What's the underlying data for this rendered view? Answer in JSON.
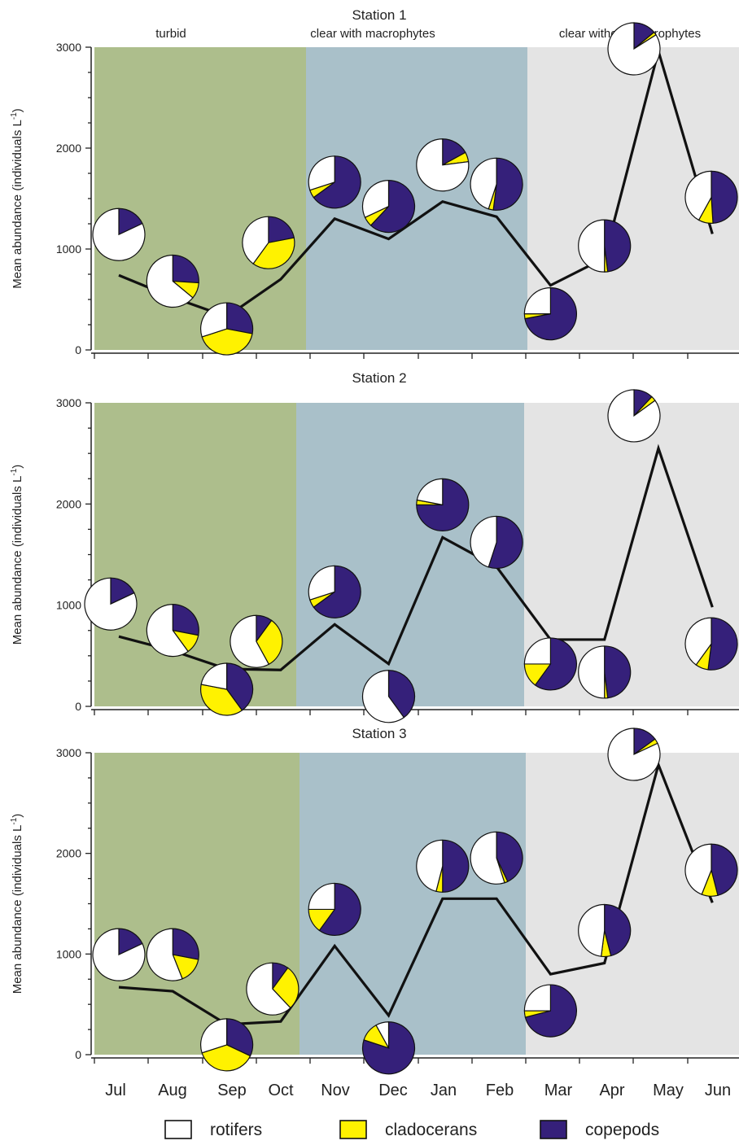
{
  "colors": {
    "turbid": "#adbe8c",
    "clear_with": "#a9c0c9",
    "clear_without": "#e4e4e4",
    "rotifers": "#ffffff",
    "cladocerans": "#fff200",
    "copepods": "#35207a",
    "line": "#111111"
  },
  "chart_data": [
    {
      "type": "line",
      "title": "Station 1",
      "period_labels": [
        "turbid",
        "clear with macrophytes",
        "clear without macrophytes"
      ],
      "categories": [
        "Jul",
        "Aug",
        "Sep",
        "Oct",
        "Nov",
        "Dec",
        "Jan",
        "Feb",
        "Mar",
        "Apr",
        "May",
        "Jun"
      ],
      "ylabel": "Mean abundance (individuals L",
      "ylabel_sup": "-1",
      "ylabel_end": ")",
      "ylim": [
        0,
        3000
      ],
      "yticks": [
        "0",
        "1000",
        "2000",
        "3000"
      ],
      "periods": [
        {
          "label": "turbid",
          "from": 0,
          "to": 4
        },
        {
          "label": "clear with macrophytes",
          "from": 4,
          "to": 8
        },
        {
          "label": "clear without macrophytes",
          "from": 8,
          "to": 12
        }
      ],
      "series": [
        {
          "values": [
            740,
            520,
            330,
            700,
            1300,
            1100,
            1470,
            1320,
            640,
            910,
            2960,
            1150
          ]
        }
      ],
      "pies": [
        {
          "month": "Jul",
          "rotifers": 82,
          "cladocerans": 0,
          "copepods": 18
        },
        {
          "month": "Aug",
          "rotifers": 64,
          "cladocerans": 10,
          "copepods": 26
        },
        {
          "month": "Sep",
          "rotifers": 30,
          "cladocerans": 42,
          "copepods": 28
        },
        {
          "month": "Oct",
          "rotifers": 40,
          "cladocerans": 38,
          "copepods": 22
        },
        {
          "month": "Nov",
          "rotifers": 30,
          "cladocerans": 5,
          "copepods": 65
        },
        {
          "month": "Dec",
          "rotifers": 32,
          "cladocerans": 6,
          "copepods": 62
        },
        {
          "month": "Jan",
          "rotifers": 77,
          "cladocerans": 6,
          "copepods": 17
        },
        {
          "month": "Feb",
          "rotifers": 45,
          "cladocerans": 3,
          "copepods": 52
        },
        {
          "month": "Mar",
          "rotifers": 25,
          "cladocerans": 3,
          "copepods": 72
        },
        {
          "month": "Apr",
          "rotifers": 50,
          "cladocerans": 2,
          "copepods": 48
        },
        {
          "month": "May",
          "rotifers": 84,
          "cladocerans": 2,
          "copepods": 14
        },
        {
          "month": "Jun",
          "rotifers": 42,
          "cladocerans": 9,
          "copepods": 49
        }
      ]
    },
    {
      "type": "line",
      "title": "Station 2",
      "categories": [
        "Jul",
        "Aug",
        "Sep",
        "Oct",
        "Nov",
        "Dec",
        "Jan",
        "Feb",
        "Mar",
        "Apr",
        "May",
        "Jun"
      ],
      "ylabel": "Mean abundance (individuals L",
      "ylabel_sup": "-1",
      "ylabel_end": ")",
      "ylim": [
        0,
        3000
      ],
      "yticks": [
        "0",
        "1000",
        "2000",
        "3000"
      ],
      "periods": [
        {
          "label": "turbid",
          "from": 0,
          "to": 4
        },
        {
          "label": "clear with macrophytes",
          "from": 4,
          "to": 8
        },
        {
          "label": "clear without macrophytes",
          "from": 8,
          "to": 12
        }
      ],
      "series": [
        {
          "values": [
            690,
            550,
            370,
            360,
            810,
            420,
            1670,
            1380,
            660,
            660,
            2550,
            980
          ]
        }
      ],
      "pies": [
        {
          "month": "Jul",
          "rotifers": 82,
          "cladocerans": 0,
          "copepods": 18
        },
        {
          "month": "Aug",
          "rotifers": 60,
          "cladocerans": 12,
          "copepods": 28
        },
        {
          "month": "Sep",
          "rotifers": 22,
          "cladocerans": 38,
          "copepods": 40
        },
        {
          "month": "Oct",
          "rotifers": 58,
          "cladocerans": 32,
          "copepods": 10
        },
        {
          "month": "Nov",
          "rotifers": 30,
          "cladocerans": 5,
          "copepods": 65
        },
        {
          "month": "Dec",
          "rotifers": 60,
          "cladocerans": 0,
          "copepods": 40
        },
        {
          "month": "Jan",
          "rotifers": 22,
          "cladocerans": 3,
          "copepods": 75
        },
        {
          "month": "Feb",
          "rotifers": 45,
          "cladocerans": 0,
          "copepods": 55
        },
        {
          "month": "Mar",
          "rotifers": 25,
          "cladocerans": 15,
          "copepods": 60
        },
        {
          "month": "Apr",
          "rotifers": 50,
          "cladocerans": 2,
          "copepods": 48
        },
        {
          "month": "May",
          "rotifers": 85,
          "cladocerans": 3,
          "copepods": 12
        },
        {
          "month": "Jun",
          "rotifers": 40,
          "cladocerans": 8,
          "copepods": 52
        }
      ]
    },
    {
      "type": "line",
      "title": "Station 3",
      "categories": [
        "Jul",
        "Aug",
        "Sep",
        "Oct",
        "Nov",
        "Dec",
        "Jan",
        "Feb",
        "Mar",
        "Apr",
        "May",
        "Jun"
      ],
      "ylabel": "Mean abundance (individuals L",
      "ylabel_sup": "-1",
      "ylabel_end": ")",
      "ylim": [
        0,
        3000
      ],
      "yticks": [
        "0",
        "1000",
        "2000",
        "3000"
      ],
      "periods": [
        {
          "label": "turbid",
          "from": 0,
          "to": 4
        },
        {
          "label": "clear with macrophytes",
          "from": 4,
          "to": 8
        },
        {
          "label": "clear without macrophytes",
          "from": 8,
          "to": 12
        }
      ],
      "series": [
        {
          "values": [
            670,
            630,
            300,
            330,
            1080,
            390,
            1550,
            1550,
            800,
            910,
            2880,
            1510
          ]
        }
      ],
      "pies": [
        {
          "month": "Jul",
          "rotifers": 82,
          "cladocerans": 0,
          "copepods": 18
        },
        {
          "month": "Aug",
          "rotifers": 56,
          "cladocerans": 16,
          "copepods": 28
        },
        {
          "month": "Sep",
          "rotifers": 30,
          "cladocerans": 38,
          "copepods": 32
        },
        {
          "month": "Oct",
          "rotifers": 62,
          "cladocerans": 28,
          "copepods": 10
        },
        {
          "month": "Nov",
          "rotifers": 25,
          "cladocerans": 15,
          "copepods": 60
        },
        {
          "month": "Dec",
          "rotifers": 8,
          "cladocerans": 12,
          "copepods": 80
        },
        {
          "month": "Jan",
          "rotifers": 46,
          "cladocerans": 4,
          "copepods": 50
        },
        {
          "month": "Feb",
          "rotifers": 55,
          "cladocerans": 2,
          "copepods": 43
        },
        {
          "month": "Mar",
          "rotifers": 25,
          "cladocerans": 4,
          "copepods": 71
        },
        {
          "month": "Apr",
          "rotifers": 48,
          "cladocerans": 6,
          "copepods": 46
        },
        {
          "month": "May",
          "rotifers": 82,
          "cladocerans": 3,
          "copepods": 15
        },
        {
          "month": "Jun",
          "rotifers": 44,
          "cladocerans": 10,
          "copepods": 46
        }
      ]
    }
  ],
  "legend": [
    {
      "label": "rotifers",
      "color": "#ffffff"
    },
    {
      "label": "cladocerans",
      "color": "#fff200"
    },
    {
      "label": "copepods",
      "color": "#35207a"
    }
  ]
}
